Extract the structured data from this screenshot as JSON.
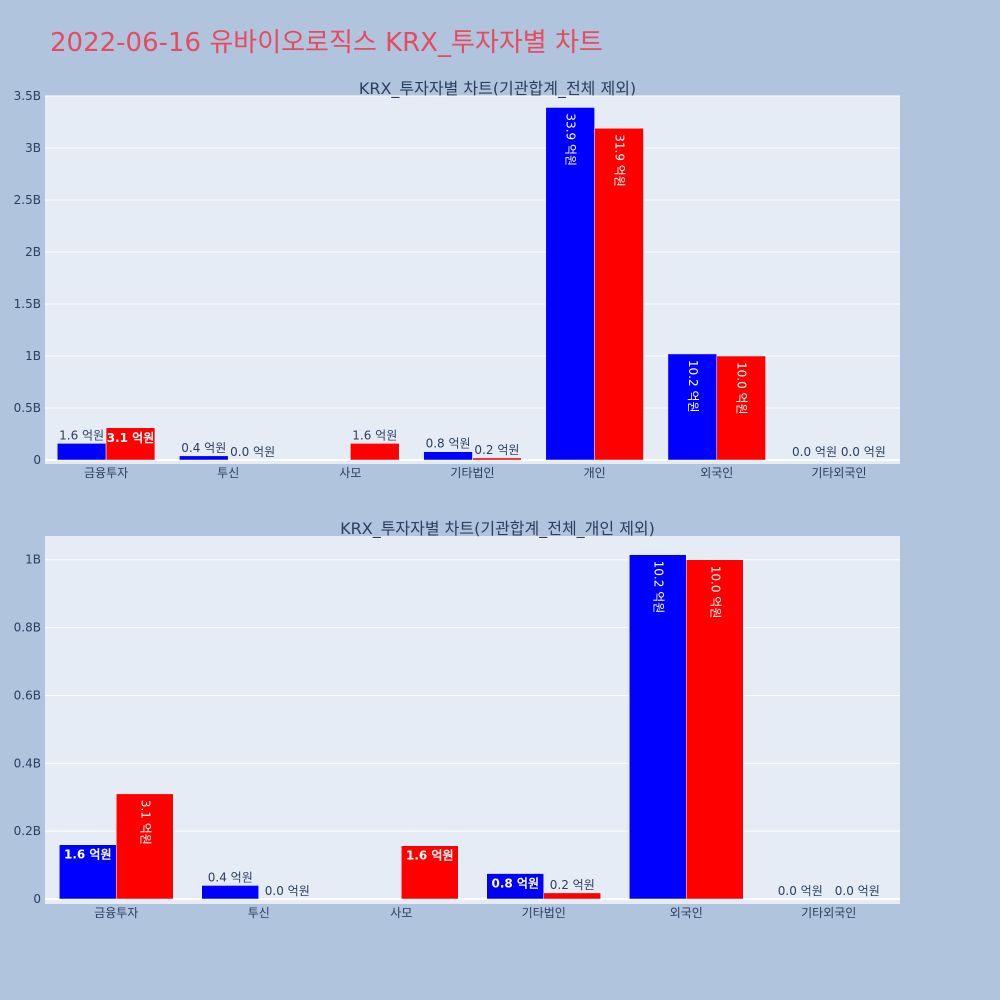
{
  "title": "2022-06-16 유바이오로직스 KRX_투자자별 차트",
  "colors": {
    "page_bg": "#b0c4de",
    "plot_bg": "#e5ecf6",
    "grid": "#ffffff",
    "title": "#e84a5f",
    "text": "#2a3f5f",
    "bar_blue": "#0000ff",
    "bar_red": "#ff0000"
  },
  "chart_data": [
    {
      "type": "bar",
      "title": "KRX_투자자별 차트(기관합계_전체 제외)",
      "categories": [
        "금융투자",
        "투신",
        "사모",
        "기타법인",
        "개인",
        "외국인",
        "기타외국인"
      ],
      "series": [
        {
          "color": "#0000ff",
          "values": [
            160000000,
            40000000,
            null,
            80000000,
            3390000000,
            1020000000,
            0
          ],
          "labels": [
            "1.6 억원",
            "0.4 억원",
            "",
            "0.8 억원",
            "33.9 억원",
            "10.2 억원",
            "0.0 억원"
          ]
        },
        {
          "color": "#ff0000",
          "values": [
            310000000,
            0,
            160000000,
            20000000,
            3190000000,
            1000000000,
            0
          ],
          "labels": [
            "3.1 억원",
            "0.0 억원",
            "1.6 억원",
            "0.2 억원",
            "31.9 억원",
            "10.0 억원",
            "0.0 억원"
          ]
        }
      ],
      "ylim": [
        0,
        3500000000
      ],
      "yticks": [
        0,
        500000000,
        1000000000,
        1500000000,
        2000000000,
        2500000000,
        3000000000,
        3500000000
      ],
      "yticklabels": [
        "0",
        "0.5B",
        "1B",
        "1.5B",
        "2B",
        "2.5B",
        "3B",
        "3.5B"
      ],
      "grid": true
    },
    {
      "type": "bar",
      "title": "KRX_투자자별 차트(기관합계_전체_개인 제외)",
      "categories": [
        "금융투자",
        "투신",
        "사모",
        "기타법인",
        "외국인",
        "기타외국인"
      ],
      "series": [
        {
          "color": "#0000ff",
          "values": [
            160000000,
            40000000,
            null,
            75000000,
            1015000000,
            0
          ],
          "labels": [
            "1.6 억원",
            "0.4 억원",
            "",
            "0.8 억원",
            "10.2 억원",
            "0.0 억원"
          ]
        },
        {
          "color": "#ff0000",
          "values": [
            310000000,
            0,
            157000000,
            18000000,
            1000000000,
            0
          ],
          "labels": [
            "3.1 억원",
            "0.0 억원",
            "1.6 억원",
            "0.2 억원",
            "10.0 억원",
            "0.0 억원"
          ]
        }
      ],
      "ylim": [
        0,
        1070000000
      ],
      "yticks": [
        0,
        200000000,
        400000000,
        600000000,
        800000000,
        1000000000
      ],
      "yticklabels": [
        "0",
        "0.2B",
        "0.4B",
        "0.6B",
        "0.8B",
        "1B"
      ],
      "grid": true
    }
  ]
}
